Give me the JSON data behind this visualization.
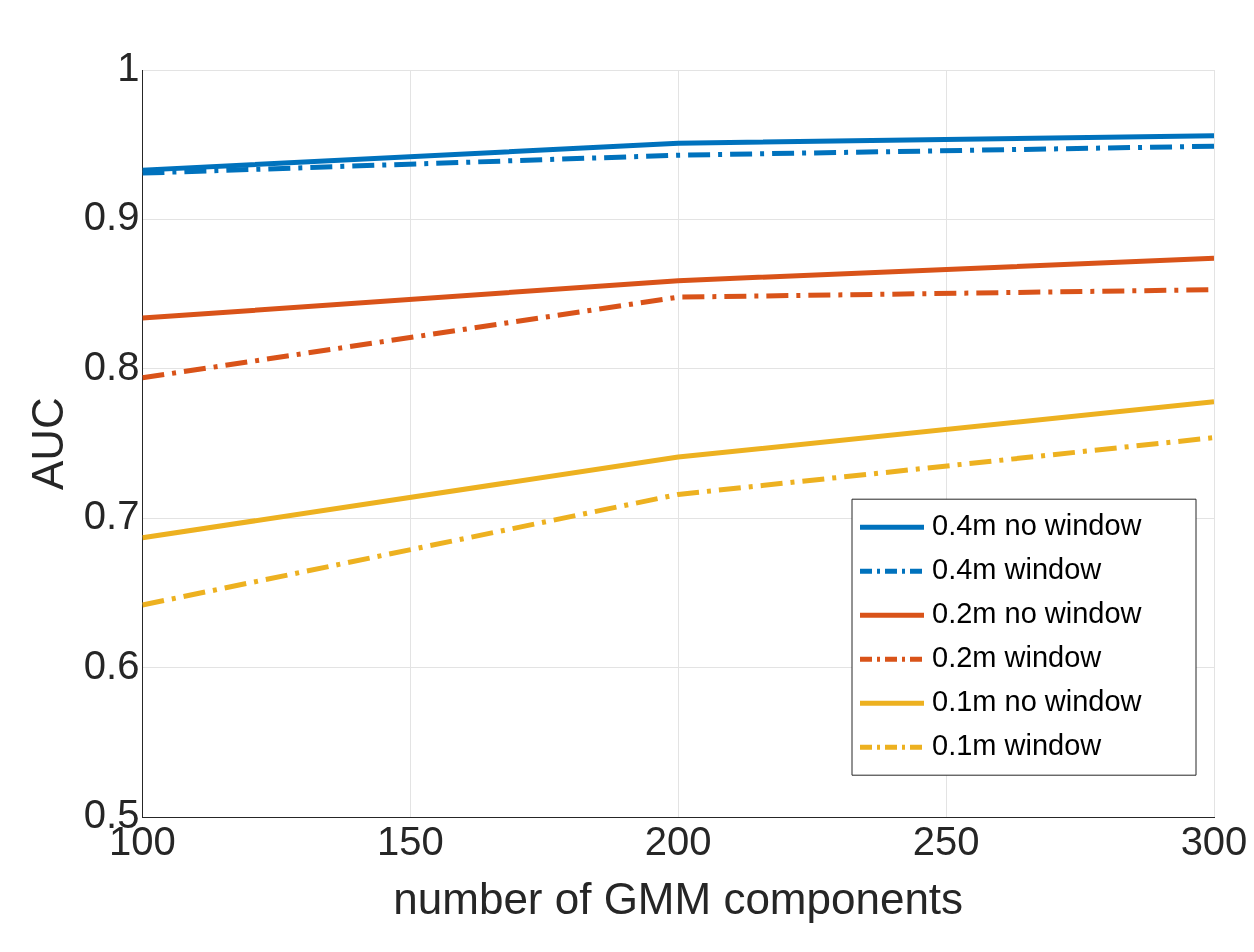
{
  "chart_data": {
    "type": "line",
    "xlabel": "number of GMM components",
    "ylabel": "AUC",
    "x": [
      100,
      200,
      300
    ],
    "xlim": [
      100,
      300
    ],
    "xticks": [
      100,
      150,
      200,
      250,
      300
    ],
    "ylim": [
      0.5,
      1
    ],
    "yticks": [
      0.5,
      0.6,
      0.7,
      0.8,
      0.9,
      1
    ],
    "grid": true,
    "legend": "bottom right",
    "marker": "none",
    "series": [
      {
        "name": "0.4m no window",
        "color": "#0072bd",
        "values": [
          0.933,
          0.951,
          0.956
        ],
        "line_style": "solid"
      },
      {
        "name": "0.4m window",
        "color": "#0072bd",
        "values": [
          0.931,
          0.943,
          0.949
        ],
        "line_style": "dashed"
      },
      {
        "name": "0.2m no window",
        "color": "#d95319",
        "values": [
          0.834,
          0.859,
          0.874
        ],
        "line_style": "solid"
      },
      {
        "name": "0.2m window",
        "color": "#d95319",
        "values": [
          0.794,
          0.848,
          0.853
        ],
        "line_style": "dashed"
      },
      {
        "name": "0.1m no window",
        "color": "#edb120",
        "values": [
          0.687,
          0.741,
          0.778
        ],
        "line_style": "solid"
      },
      {
        "name": "0.1m window",
        "color": "#edb120",
        "values": [
          0.642,
          0.716,
          0.754
        ],
        "line_style": "dashed"
      }
    ]
  }
}
